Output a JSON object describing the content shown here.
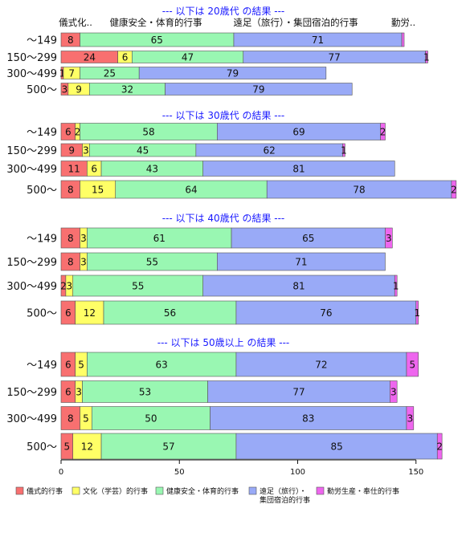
{
  "chart_data": {
    "type": "bar",
    "orientation": "horizontal",
    "stacked": true,
    "xlim": [
      0,
      165
    ],
    "xticks": [
      0,
      50,
      100,
      150
    ],
    "column_headers": [
      "儀式化..",
      "健康安全・体育的行事",
      "遠足（旅行）・集団宿泊的行事",
      "勤労.."
    ],
    "categories": [
      "～149",
      "150～299",
      "300～499",
      "500～"
    ],
    "series_names": [
      "儀式的行事",
      "文化（学芸）的行事",
      "健康安全・体育的行事",
      "遠足（旅行）・\n集団宿泊的行事",
      "勤労生産・奉仕的行事"
    ],
    "colors": [
      "#f87070",
      "#ffff66",
      "#99f7b2",
      "#99aaf7",
      "#ee66ee"
    ],
    "panels": [
      {
        "title": "--- 以下は 20歳代 の結果 ---",
        "rows": [
          {
            "category": "～149",
            "values": [
              8,
              0,
              65,
              71,
              1
            ],
            "labels": [
              "8",
              "",
              "65",
              "71",
              ""
            ]
          },
          {
            "category": "150～299",
            "values": [
              24,
              6,
              47,
              77,
              1
            ],
            "labels": [
              "24",
              "6",
              "47",
              "77",
              "1"
            ]
          },
          {
            "category": "300～499",
            "values": [
              1,
              7,
              25,
              79,
              0
            ],
            "labels": [
              "1",
              "7",
              "25",
              "79",
              ""
            ]
          },
          {
            "category": "500～",
            "values": [
              3,
              9,
              32,
              79,
              0
            ],
            "labels": [
              "3",
              "9",
              "32",
              "79",
              ""
            ]
          }
        ]
      },
      {
        "title": "--- 以下は 30歳代 の結果 ---",
        "rows": [
          {
            "category": "～149",
            "values": [
              6,
              2,
              58,
              69,
              2
            ],
            "labels": [
              "6",
              "2",
              "58",
              "69",
              "2"
            ]
          },
          {
            "category": "150～299",
            "values": [
              9,
              3,
              45,
              62,
              1
            ],
            "labels": [
              "9",
              "3",
              "45",
              "62",
              "1"
            ]
          },
          {
            "category": "300～499",
            "values": [
              11,
              6,
              43,
              81,
              0
            ],
            "labels": [
              "11",
              "6",
              "43",
              "81",
              ""
            ]
          },
          {
            "category": "500～",
            "values": [
              8,
              15,
              64,
              78,
              2
            ],
            "labels": [
              "8",
              "15",
              "64",
              "78",
              "2"
            ]
          }
        ]
      },
      {
        "title": "--- 以下は 40歳代 の結果 ---",
        "rows": [
          {
            "category": "～149",
            "values": [
              8,
              3,
              61,
              65,
              3
            ],
            "labels": [
              "8",
              "3",
              "61",
              "65",
              "3"
            ]
          },
          {
            "category": "150～299",
            "values": [
              8,
              3,
              55,
              71,
              0
            ],
            "labels": [
              "8",
              "3",
              "55",
              "71",
              ""
            ]
          },
          {
            "category": "300～499",
            "values": [
              2,
              3,
              55,
              81,
              1
            ],
            "labels": [
              "2",
              "3",
              "55",
              "81",
              "1"
            ]
          },
          {
            "category": "500～",
            "values": [
              6,
              12,
              56,
              76,
              1
            ],
            "labels": [
              "6",
              "12",
              "56",
              "76",
              "1"
            ]
          }
        ]
      },
      {
        "title": "--- 以下は 50歳以上 の結果 ---",
        "rows": [
          {
            "category": "～149",
            "values": [
              6,
              5,
              63,
              72,
              5
            ],
            "labels": [
              "6",
              "5",
              "63",
              "72",
              "5"
            ]
          },
          {
            "category": "150～299",
            "values": [
              6,
              3,
              53,
              77,
              3
            ],
            "labels": [
              "6",
              "3",
              "53",
              "77",
              "3"
            ]
          },
          {
            "category": "300～499",
            "values": [
              8,
              5,
              50,
              83,
              3
            ],
            "labels": [
              "8",
              "5",
              "50",
              "83",
              "3"
            ]
          },
          {
            "category": "500～",
            "values": [
              5,
              12,
              57,
              85,
              2
            ],
            "labels": [
              "5",
              "12",
              "57",
              "85",
              "2"
            ]
          }
        ]
      }
    ]
  }
}
